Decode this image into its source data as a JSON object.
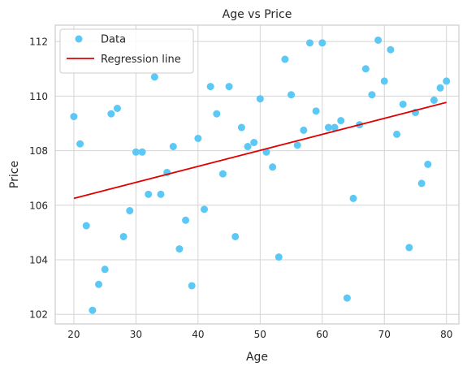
{
  "chart_data": {
    "type": "scatter",
    "title": "Age vs Price",
    "xlabel": "Age",
    "ylabel": "Price",
    "xlim": [
      17,
      82
    ],
    "ylim": [
      101.65,
      112.6
    ],
    "x_ticks": [
      20,
      30,
      40,
      50,
      60,
      70,
      80
    ],
    "y_ticks": [
      102,
      104,
      106,
      108,
      110,
      112
    ],
    "grid": true,
    "legend_position": "upper-left",
    "series": [
      {
        "name": "Data",
        "kind": "scatter",
        "color": "#5bc8f5",
        "points": [
          [
            20,
            109.25
          ],
          [
            21,
            108.25
          ],
          [
            22,
            105.25
          ],
          [
            23,
            102.15
          ],
          [
            24,
            103.1
          ],
          [
            25,
            103.65
          ],
          [
            26,
            109.35
          ],
          [
            27,
            109.55
          ],
          [
            28,
            104.85
          ],
          [
            29,
            105.8
          ],
          [
            30,
            107.95
          ],
          [
            31,
            107.95
          ],
          [
            32,
            106.4
          ],
          [
            33,
            110.7
          ],
          [
            34,
            106.4
          ],
          [
            35,
            107.2
          ],
          [
            36,
            108.15
          ],
          [
            37,
            104.4
          ],
          [
            38,
            105.45
          ],
          [
            39,
            103.05
          ],
          [
            40,
            108.45
          ],
          [
            41,
            105.85
          ],
          [
            42,
            110.35
          ],
          [
            43,
            109.35
          ],
          [
            44,
            107.15
          ],
          [
            45,
            110.35
          ],
          [
            46,
            104.85
          ],
          [
            47,
            108.85
          ],
          [
            48,
            108.15
          ],
          [
            49,
            108.3
          ],
          [
            50,
            109.9
          ],
          [
            51,
            107.95
          ],
          [
            52,
            107.4
          ],
          [
            53,
            104.1
          ],
          [
            54,
            111.35
          ],
          [
            55,
            110.05
          ],
          [
            56,
            108.2
          ],
          [
            57,
            108.75
          ],
          [
            58,
            111.95
          ],
          [
            59,
            109.45
          ],
          [
            60,
            111.95
          ],
          [
            61,
            108.85
          ],
          [
            62,
            108.85
          ],
          [
            63,
            109.1
          ],
          [
            64,
            102.6
          ],
          [
            65,
            106.25
          ],
          [
            66,
            108.95
          ],
          [
            67,
            111.0
          ],
          [
            68,
            110.05
          ],
          [
            69,
            112.05
          ],
          [
            70,
            110.55
          ],
          [
            71,
            111.7
          ],
          [
            72,
            108.6
          ],
          [
            73,
            109.7
          ],
          [
            74,
            104.45
          ],
          [
            75,
            109.4
          ],
          [
            76,
            106.8
          ],
          [
            77,
            107.5
          ],
          [
            78,
            109.85
          ],
          [
            79,
            110.3
          ],
          [
            80,
            110.55
          ]
        ]
      },
      {
        "name": "Regression line",
        "kind": "line",
        "color": "#e00000",
        "points": [
          [
            20,
            106.25
          ],
          [
            80,
            109.77
          ]
        ]
      }
    ]
  }
}
